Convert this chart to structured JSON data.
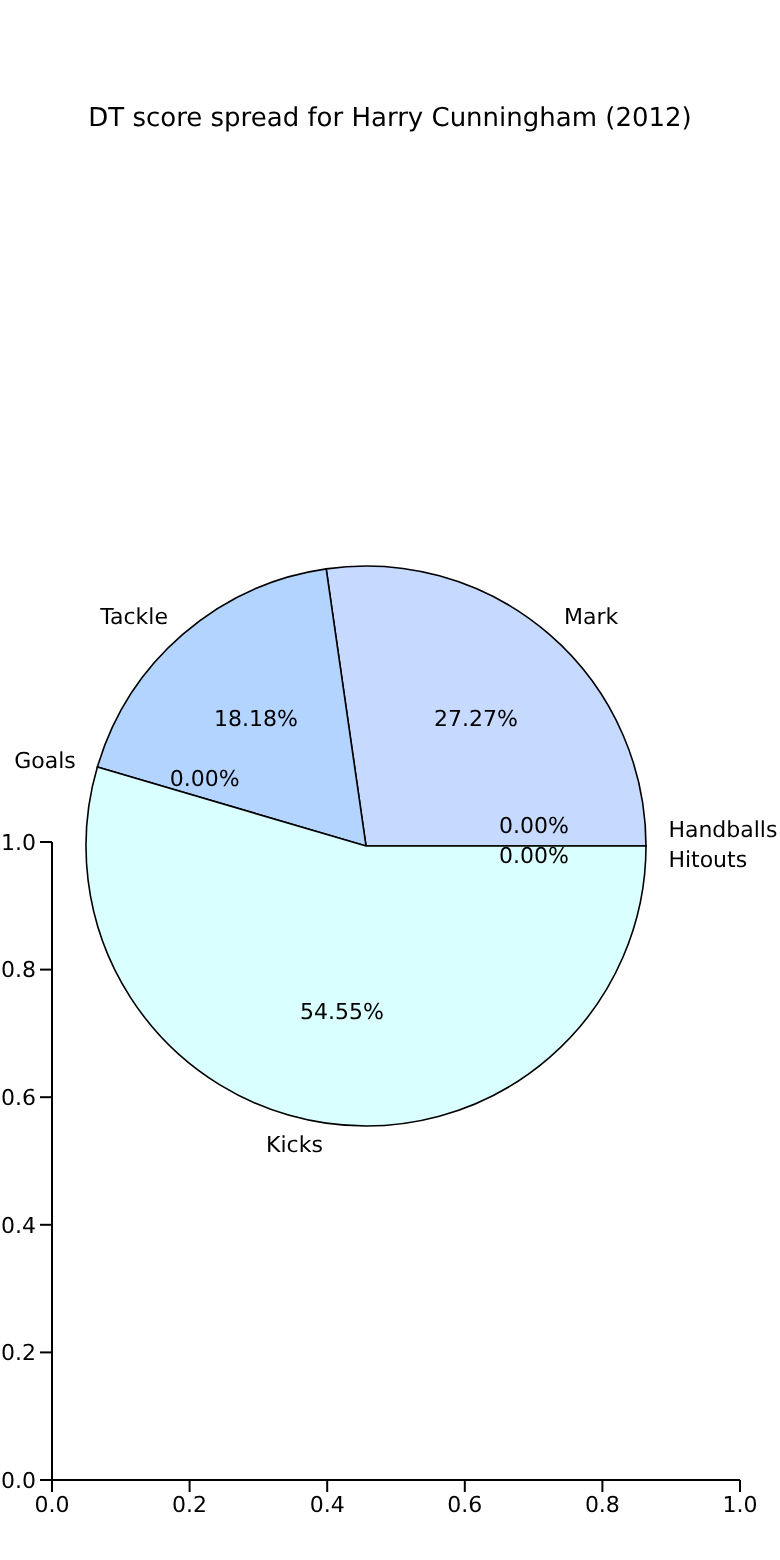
{
  "chart_data": [
    {
      "type": "pie",
      "title": "DT score spread for Harry Cunningham (2012)",
      "categories": [
        "Mark",
        "Tackle",
        "Goals",
        "Kicks",
        "Handballs",
        "Hitouts"
      ],
      "values": [
        27.27,
        18.18,
        0,
        54.55,
        0,
        0
      ],
      "value_labels": [
        "27.27%",
        "18.18%",
        "0.00%",
        "54.55%",
        "0.00%",
        "0.00%"
      ],
      "colors": [
        "#c6d9ff",
        "#b3d4ff",
        "#c6d9ff",
        "#d9ffff",
        "#c6d9ff",
        "#c6d9ff"
      ]
    },
    {
      "type": "scatter",
      "xlim": [
        0,
        1
      ],
      "ylim": [
        0,
        1
      ],
      "xticks": [
        {
          "value": 0,
          "label": "0.0"
        },
        {
          "value": 0.2,
          "label": "0.2"
        },
        {
          "value": 0.4,
          "label": "0.4"
        },
        {
          "value": 0.6,
          "label": "0.6"
        },
        {
          "value": 0.8,
          "label": "0.8"
        },
        {
          "value": 1,
          "label": "1.0"
        }
      ],
      "yticks": [
        {
          "value": 0,
          "label": "0.0"
        },
        {
          "value": 0.2,
          "label": "0.2"
        },
        {
          "value": 0.4,
          "label": "0.4"
        },
        {
          "value": 0.6,
          "label": "0.6"
        },
        {
          "value": 0.8,
          "label": "0.8"
        },
        {
          "value": 1,
          "label": "1.0"
        }
      ]
    }
  ]
}
